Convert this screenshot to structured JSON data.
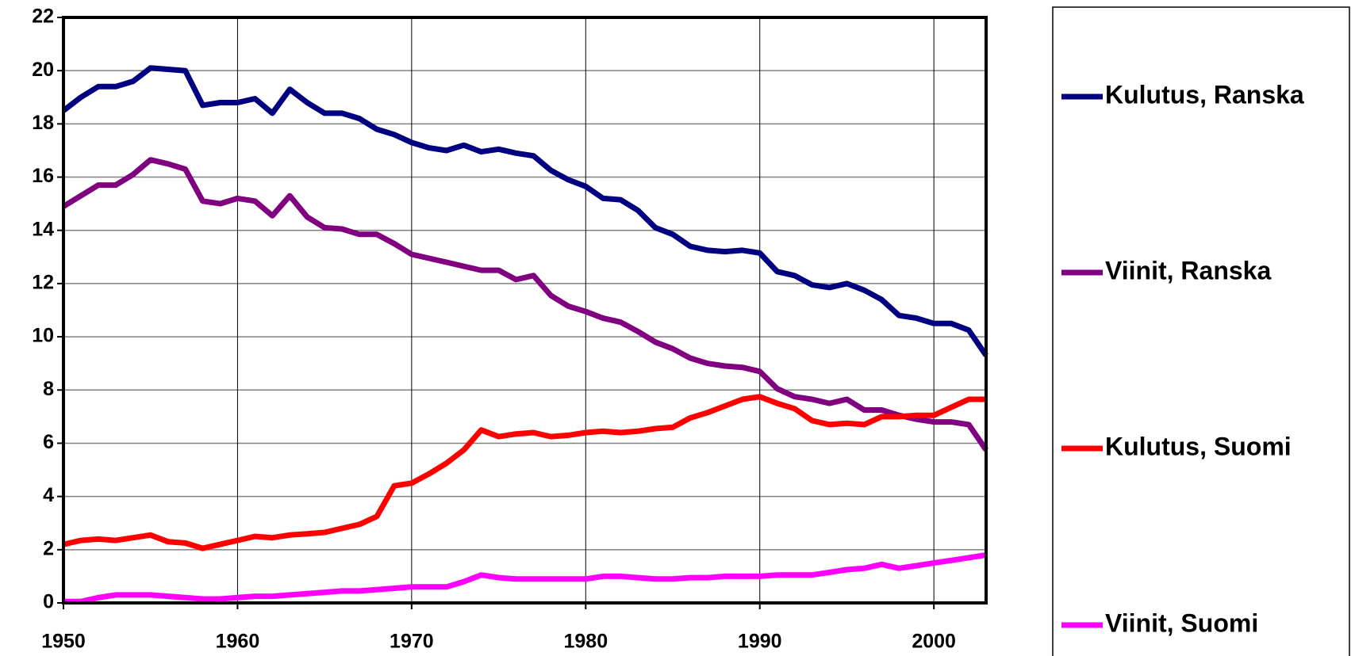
{
  "chart_data": {
    "type": "line",
    "x": [
      1950,
      1951,
      1952,
      1953,
      1954,
      1955,
      1956,
      1957,
      1958,
      1959,
      1960,
      1961,
      1962,
      1963,
      1964,
      1965,
      1966,
      1967,
      1968,
      1969,
      1970,
      1971,
      1972,
      1973,
      1974,
      1975,
      1976,
      1977,
      1978,
      1979,
      1980,
      1981,
      1982,
      1983,
      1984,
      1985,
      1986,
      1987,
      1988,
      1989,
      1990,
      1991,
      1992,
      1993,
      1994,
      1995,
      1996,
      1997,
      1998,
      1999,
      2000,
      2001,
      2002,
      2003
    ],
    "series": [
      {
        "name": "Kulutus, Ranska",
        "color": "#000080",
        "values": [
          18.5,
          19.0,
          19.4,
          19.4,
          19.6,
          20.1,
          20.05,
          20.0,
          18.7,
          18.8,
          18.8,
          18.95,
          18.4,
          19.3,
          18.8,
          18.4,
          18.4,
          18.2,
          17.8,
          17.6,
          17.3,
          17.1,
          17.0,
          17.2,
          16.95,
          17.05,
          16.9,
          16.8,
          16.25,
          15.9,
          15.65,
          15.2,
          15.15,
          14.75,
          14.1,
          13.85,
          13.4,
          13.25,
          13.2,
          13.25,
          13.15,
          12.45,
          12.3,
          11.95,
          11.85,
          12.0,
          11.75,
          11.4,
          10.8,
          10.7,
          10.5,
          10.5,
          10.25,
          9.3
        ]
      },
      {
        "name": "Viinit, Ranska",
        "color": "#800080",
        "values": [
          14.9,
          15.3,
          15.7,
          15.7,
          16.1,
          16.65,
          16.5,
          16.3,
          15.1,
          15.0,
          15.2,
          15.1,
          14.55,
          15.3,
          14.5,
          14.1,
          14.05,
          13.85,
          13.85,
          13.5,
          13.1,
          12.95,
          12.8,
          12.65,
          12.5,
          12.5,
          12.15,
          12.3,
          11.55,
          11.15,
          10.95,
          10.7,
          10.55,
          10.2,
          9.8,
          9.55,
          9.2,
          9.0,
          8.9,
          8.85,
          8.7,
          8.05,
          7.75,
          7.65,
          7.5,
          7.65,
          7.25,
          7.25,
          7.05,
          6.9,
          6.8,
          6.8,
          6.7,
          5.75
        ]
      },
      {
        "name": "Kulutus, Suomi",
        "color": "#ff0000",
        "values": [
          2.2,
          2.35,
          2.4,
          2.35,
          2.45,
          2.55,
          2.3,
          2.25,
          2.05,
          2.2,
          2.35,
          2.5,
          2.45,
          2.55,
          2.6,
          2.65,
          2.8,
          2.95,
          3.25,
          4.4,
          4.5,
          4.85,
          5.25,
          5.75,
          6.5,
          6.25,
          6.35,
          6.4,
          6.25,
          6.3,
          6.4,
          6.45,
          6.4,
          6.45,
          6.55,
          6.6,
          6.95,
          7.15,
          7.4,
          7.65,
          7.75,
          7.5,
          7.3,
          6.85,
          6.7,
          6.75,
          6.7,
          7.0,
          7.0,
          7.05,
          7.05,
          7.35,
          7.65,
          7.65
        ]
      },
      {
        "name": "Viinit, Suomi",
        "color": "#ff00ff",
        "values": [
          0.05,
          0.05,
          0.2,
          0.3,
          0.3,
          0.3,
          0.25,
          0.2,
          0.15,
          0.15,
          0.2,
          0.25,
          0.25,
          0.3,
          0.35,
          0.4,
          0.45,
          0.45,
          0.5,
          0.55,
          0.6,
          0.6,
          0.6,
          0.8,
          1.05,
          0.95,
          0.9,
          0.9,
          0.9,
          0.9,
          0.9,
          1.0,
          1.0,
          0.95,
          0.9,
          0.9,
          0.95,
          0.95,
          1.0,
          1.0,
          1.0,
          1.05,
          1.05,
          1.05,
          1.15,
          1.25,
          1.3,
          1.45,
          1.3,
          1.4,
          1.5,
          1.6,
          1.7,
          1.8
        ]
      }
    ],
    "xlim": [
      1950,
      2003
    ],
    "xticks": [
      1950,
      1960,
      1970,
      1980,
      1990,
      2000
    ],
    "ylim": [
      0,
      22
    ],
    "yticks": [
      0,
      2,
      4,
      6,
      8,
      10,
      12,
      14,
      16,
      18,
      20,
      22
    ],
    "grid": true,
    "legend": "right"
  }
}
